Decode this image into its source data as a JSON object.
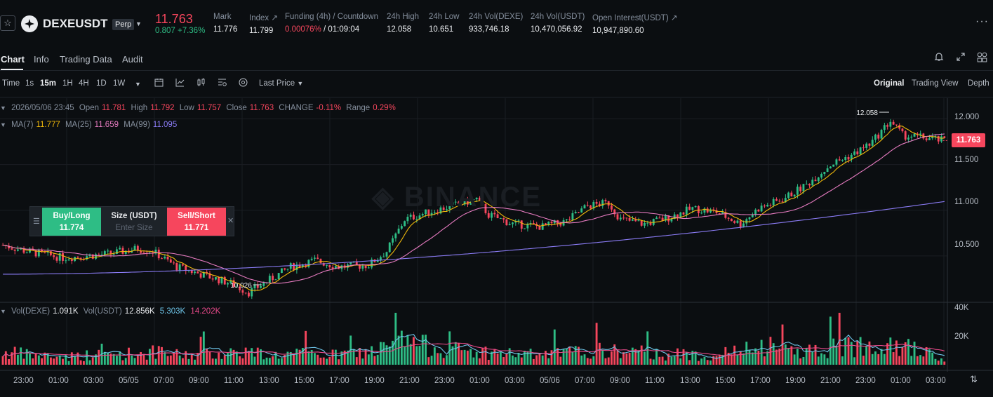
{
  "header": {
    "symbol": "DEXEUSDT",
    "contract_type": "Perp",
    "last_price": "11.763",
    "change": "0.807 +7.36%",
    "stats": [
      {
        "label": "Mark",
        "value": "11.776"
      },
      {
        "label": "Index ↗",
        "value": "11.799"
      },
      {
        "label": "Funding (4h) / Countdown",
        "value_rate": "0.00076%",
        "value_countdown": " / 01:09:04"
      },
      {
        "label": "24h High",
        "value": "12.058"
      },
      {
        "label": "24h Low",
        "value": "10.651"
      },
      {
        "label": "24h Vol(DEXE)",
        "value": "933,746.18"
      },
      {
        "label": "24h Vol(USDT)",
        "value": "10,470,056.92"
      },
      {
        "label": "Open Interest(USDT) ↗",
        "value": "10,947,890.60"
      }
    ]
  },
  "tabs": [
    "Chart",
    "Info",
    "Trading Data",
    "Audit"
  ],
  "toolbar": {
    "intervals": [
      "Time",
      "1s",
      "15m",
      "1H",
      "4H",
      "1D",
      "1W"
    ],
    "active_interval": "15m",
    "price_type": "Last Price",
    "views": [
      "Original",
      "Trading View",
      "Depth"
    ],
    "active_view": "Original"
  },
  "ohlc": {
    "date": "2026/05/06 23:45",
    "open_label": "Open",
    "open": "11.781",
    "high_label": "High",
    "high": "11.792",
    "low_label": "Low",
    "low": "11.757",
    "close_label": "Close",
    "close": "11.763",
    "change_label": "CHANGE",
    "change": "-0.11%",
    "range_label": "Range",
    "range": "0.29%"
  },
  "ma": {
    "ma7_label": "MA(7)",
    "ma7": "11.777",
    "ma25_label": "MA(25)",
    "ma25": "11.659",
    "ma99_label": "MA(99)",
    "ma99": "11.095"
  },
  "volume": {
    "dexe_label": "Vol(DEXE)",
    "dexe": "1.091K",
    "usdt_label": "Vol(USDT)",
    "usdt": "12.856K",
    "ma1": "5.303K",
    "ma2": "14.202K"
  },
  "order_widget": {
    "buy_label": "Buy/Long",
    "buy_price": "11.774",
    "size_label": "Size (USDT)",
    "size_placeholder": "Enter Size",
    "sell_label": "Sell/Short",
    "sell_price": "11.771"
  },
  "chart_data": {
    "type": "candlestick",
    "y_ticks": [
      "12.000",
      "11.500",
      "11.000",
      "10.500"
    ],
    "ylim": [
      10.0,
      12.15
    ],
    "vol_ticks": [
      "40K",
      "20K"
    ],
    "vol_max": 40000,
    "x_ticks": [
      "23:00",
      "01:00",
      "03:00",
      "05/05",
      "07:00",
      "09:00",
      "11:00",
      "13:00",
      "15:00",
      "17:00",
      "19:00",
      "21:00",
      "23:00",
      "01:00",
      "03:00",
      "05/06",
      "07:00",
      "09:00",
      "11:00",
      "13:00",
      "15:00",
      "17:00",
      "19:00",
      "21:00",
      "23:00",
      "01:00",
      "03:00"
    ],
    "high_marker": "12.058",
    "low_marker": "10.026",
    "current_price": "11.763",
    "colors": {
      "up": "#2ebd85",
      "down": "#f6465d",
      "ma7": "#f0b90b",
      "ma25": "#e67bc0",
      "ma99": "#8b7cf6",
      "vol_ma1": "#6ec4e8",
      "vol_ma2": "#e84a8a"
    },
    "close_keypoints": [
      [
        0,
        10.62
      ],
      [
        8,
        10.55
      ],
      [
        20,
        10.48
      ],
      [
        35,
        10.52
      ],
      [
        45,
        10.58
      ],
      [
        50,
        10.55
      ],
      [
        58,
        10.38
      ],
      [
        68,
        10.28
      ],
      [
        76,
        10.2
      ],
      [
        82,
        10.1
      ],
      [
        88,
        10.22
      ],
      [
        96,
        10.38
      ],
      [
        104,
        10.45
      ],
      [
        112,
        10.38
      ],
      [
        122,
        10.4
      ],
      [
        128,
        10.55
      ],
      [
        134,
        10.9
      ],
      [
        142,
        10.98
      ],
      [
        150,
        11.05
      ],
      [
        158,
        11.12
      ],
      [
        162,
        10.95
      ],
      [
        170,
        10.85
      ],
      [
        180,
        10.82
      ],
      [
        188,
        10.88
      ],
      [
        195,
        11.05
      ],
      [
        202,
        11.08
      ],
      [
        206,
        10.9
      ],
      [
        214,
        10.85
      ],
      [
        222,
        10.92
      ],
      [
        230,
        11.02
      ],
      [
        238,
        10.98
      ],
      [
        246,
        10.85
      ],
      [
        252,
        11.02
      ],
      [
        260,
        11.12
      ],
      [
        268,
        11.28
      ],
      [
        276,
        11.5
      ],
      [
        284,
        11.62
      ],
      [
        290,
        11.75
      ],
      [
        296,
        11.98
      ],
      [
        300,
        11.82
      ],
      [
        306,
        11.8
      ],
      [
        314,
        11.76
      ]
    ],
    "volume_keypoints": [
      [
        0,
        9000
      ],
      [
        10,
        7000
      ],
      [
        20,
        6000
      ],
      [
        30,
        7000
      ],
      [
        40,
        8000
      ],
      [
        50,
        9000
      ],
      [
        60,
        7000
      ],
      [
        70,
        8000
      ],
      [
        80,
        10000
      ],
      [
        90,
        7000
      ],
      [
        100,
        8000
      ],
      [
        110,
        7000
      ],
      [
        120,
        9000
      ],
      [
        128,
        12000
      ],
      [
        134,
        18000
      ],
      [
        140,
        14000
      ],
      [
        150,
        11000
      ],
      [
        160,
        9000
      ],
      [
        170,
        8000
      ],
      [
        180,
        7000
      ],
      [
        190,
        9000
      ],
      [
        200,
        10000
      ],
      [
        210,
        9000
      ],
      [
        220,
        8000
      ],
      [
        230,
        7000
      ],
      [
        240,
        8000
      ],
      [
        250,
        11000
      ],
      [
        260,
        12000
      ],
      [
        270,
        10000
      ],
      [
        280,
        13000
      ],
      [
        290,
        16000
      ],
      [
        296,
        20000
      ],
      [
        300,
        14000
      ],
      [
        306,
        10000
      ],
      [
        314,
        3000
      ]
    ]
  }
}
